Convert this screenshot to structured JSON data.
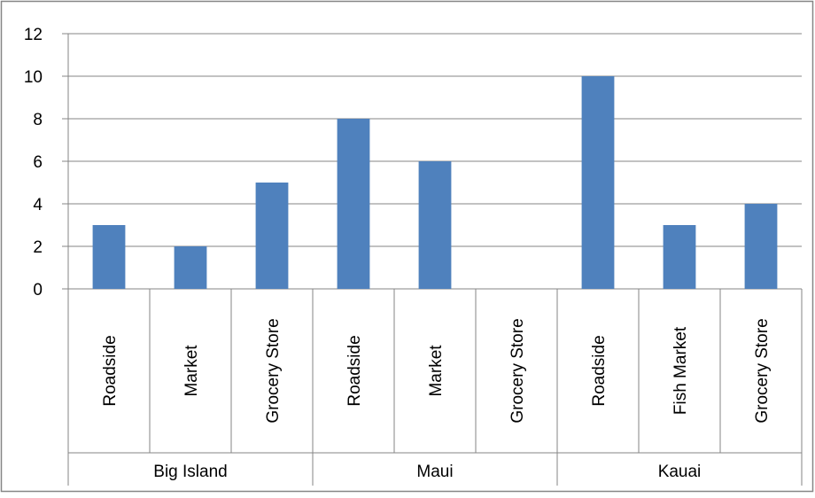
{
  "chart_data": {
    "type": "bar",
    "groups": [
      {
        "name": "Big Island",
        "categories": [
          "Roadside",
          "Market",
          "Grocery Store"
        ],
        "values": [
          3,
          2,
          5
        ]
      },
      {
        "name": "Maui",
        "categories": [
          "Roadside",
          "Market",
          "Grocery Store"
        ],
        "values": [
          8,
          6,
          0
        ]
      },
      {
        "name": "Kauai",
        "categories": [
          "Roadside",
          "Fish Market",
          "Grocery Store"
        ],
        "values": [
          10,
          3,
          4
        ]
      }
    ],
    "y_ticks": [
      "0",
      "2",
      "4",
      "6",
      "8",
      "10",
      "12"
    ],
    "ylim": [
      0,
      12
    ],
    "grid": true,
    "legend": "none",
    "bar_color": "#4f81bd",
    "grid_color": "#868686",
    "border_color": "#868686"
  }
}
